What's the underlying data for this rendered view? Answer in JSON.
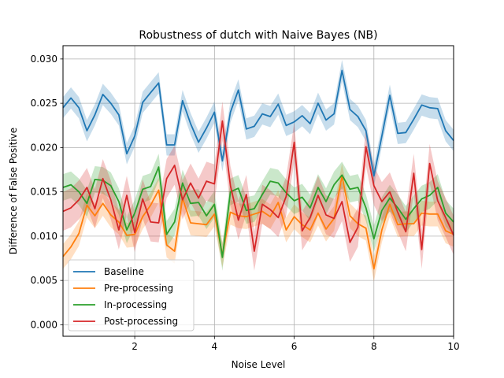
{
  "chart_data": {
    "type": "line",
    "title": "Robustness of dutch with Naive Bayes (NB)",
    "xlabel": "Noise Level",
    "ylabel": "Difference of False Positive",
    "xlim": [
      0.2,
      10
    ],
    "ylim": [
      -0.0013,
      0.0315
    ],
    "xticks": [
      2,
      4,
      6,
      8,
      10
    ],
    "xtick_labels": [
      "2",
      "4",
      "6",
      "8",
      "10"
    ],
    "yticks": [
      0.0,
      0.005,
      0.01,
      0.015,
      0.02,
      0.025,
      0.03
    ],
    "ytick_labels": [
      "0.000",
      "0.005",
      "0.010",
      "0.015",
      "0.020",
      "0.025",
      "0.030"
    ],
    "grid": true,
    "legend_position": "lower-left",
    "x": [
      0.2,
      0.4,
      0.6,
      0.8,
      1.0,
      1.2,
      1.4,
      1.6,
      1.8,
      2.0,
      2.2,
      2.4,
      2.6,
      2.8,
      3.0,
      3.2,
      3.4,
      3.6,
      3.8,
      4.0,
      4.2,
      4.4,
      4.6,
      4.8,
      5.0,
      5.2,
      5.4,
      5.6,
      5.8,
      6.0,
      6.2,
      6.4,
      6.6,
      6.8,
      7.0,
      7.2,
      7.4,
      7.6,
      7.8,
      8.0,
      8.2,
      8.4,
      8.6,
      8.8,
      9.0,
      9.2,
      9.4,
      9.6,
      9.8,
      10.0
    ],
    "series": [
      {
        "name": "Baseline",
        "color": "#1f77b4",
        "band": 0.0012,
        "values": [
          0.0245,
          0.0256,
          0.0245,
          0.0219,
          0.0237,
          0.026,
          0.025,
          0.0237,
          0.0193,
          0.0213,
          0.0251,
          0.0262,
          0.0273,
          0.0203,
          0.0203,
          0.0253,
          0.0227,
          0.0206,
          0.0222,
          0.024,
          0.0185,
          0.024,
          0.0265,
          0.0221,
          0.0224,
          0.0238,
          0.0235,
          0.0249,
          0.0225,
          0.0229,
          0.0236,
          0.0227,
          0.025,
          0.0231,
          0.0238,
          0.0287,
          0.0243,
          0.0235,
          0.0219,
          0.0168,
          0.0213,
          0.0259,
          0.0216,
          0.0217,
          0.0232,
          0.0248,
          0.0245,
          0.0244,
          0.0219,
          0.0208
        ]
      },
      {
        "name": "Pre-processing",
        "color": "#ff7f0e",
        "band": 0.0014,
        "values": [
          0.0077,
          0.0088,
          0.0103,
          0.0135,
          0.0123,
          0.0137,
          0.0124,
          0.0116,
          0.0101,
          0.0102,
          0.0122,
          0.0135,
          0.0152,
          0.009,
          0.0083,
          0.0143,
          0.0115,
          0.0114,
          0.0113,
          0.0125,
          0.0079,
          0.0127,
          0.0123,
          0.0122,
          0.0125,
          0.0128,
          0.0122,
          0.0138,
          0.0107,
          0.0122,
          0.0113,
          0.0107,
          0.0126,
          0.0108,
          0.012,
          0.0168,
          0.0123,
          0.0114,
          0.0109,
          0.0063,
          0.0107,
          0.0136,
          0.0113,
          0.0114,
          0.0114,
          0.0126,
          0.0125,
          0.0125,
          0.0106,
          0.0102
        ]
      },
      {
        "name": "In-processing",
        "color": "#2ca02c",
        "band": 0.0015,
        "values": [
          0.0155,
          0.0158,
          0.015,
          0.0137,
          0.0164,
          0.0163,
          0.0157,
          0.0139,
          0.0107,
          0.0126,
          0.0153,
          0.0156,
          0.0178,
          0.0102,
          0.0116,
          0.016,
          0.0137,
          0.0138,
          0.0123,
          0.0136,
          0.0076,
          0.015,
          0.0154,
          0.0129,
          0.0131,
          0.0147,
          0.0162,
          0.016,
          0.0149,
          0.014,
          0.0144,
          0.0132,
          0.0155,
          0.0139,
          0.0158,
          0.0169,
          0.0153,
          0.0155,
          0.0132,
          0.0097,
          0.0129,
          0.0143,
          0.0132,
          0.0119,
          0.0131,
          0.0142,
          0.0146,
          0.0155,
          0.0126,
          0.0116
        ]
      },
      {
        "name": "Post-processing",
        "color": "#d62728",
        "band": 0.0022,
        "values": [
          0.0128,
          0.0132,
          0.0141,
          0.0155,
          0.0131,
          0.0165,
          0.0141,
          0.0107,
          0.0146,
          0.0104,
          0.0142,
          0.0116,
          0.0115,
          0.0165,
          0.018,
          0.0141,
          0.016,
          0.0143,
          0.0162,
          0.0159,
          0.023,
          0.0157,
          0.0118,
          0.0147,
          0.0083,
          0.0136,
          0.013,
          0.0121,
          0.0145,
          0.0206,
          0.0106,
          0.0121,
          0.0146,
          0.0124,
          0.012,
          0.0139,
          0.0093,
          0.011,
          0.0201,
          0.0157,
          0.0139,
          0.015,
          0.0127,
          0.0105,
          0.0171,
          0.0085,
          0.0182,
          0.014,
          0.0121,
          0.0101
        ]
      }
    ]
  }
}
